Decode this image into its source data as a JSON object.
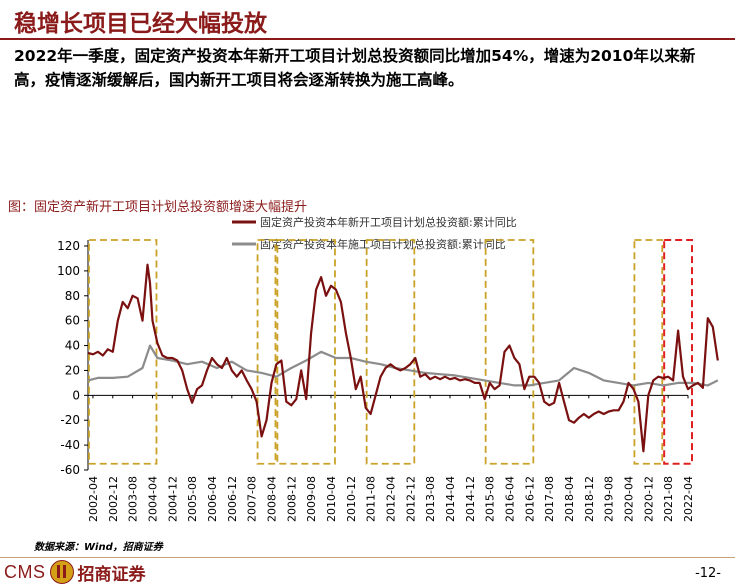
{
  "slide": {
    "title": "稳增长项目已经大幅投放",
    "summary": "2022年一季度，固定资产投资本年新开工项目计划总投资额同比增加54%，增速为2010年以来新高，疫情逐渐缓解后，国内新开工项目将会逐渐转换为施工高峰。",
    "caption": "图：固定资产新开工项目计划总投资额增速大幅提升",
    "source": "数据来源：Wind，招商证券",
    "logo_text_en": "CMS",
    "logo_text_cn": "招商证券",
    "page_number": "-12-"
  },
  "colors": {
    "brand": "#8b1a1a",
    "series_new": "#7a1010",
    "series_construction": "#8c8c8c",
    "highlight_box": "#c9a227",
    "highlight_box_latest": "#e02020"
  },
  "chart_data": {
    "type": "line",
    "title": "",
    "xlabel": "",
    "ylabel": "",
    "ylim": [
      -60,
      120
    ],
    "yticks": [
      -60,
      -40,
      -20,
      0,
      20,
      40,
      60,
      80,
      100,
      120
    ],
    "xlim": [
      "2002-02",
      "2022-04"
    ],
    "xtick_labels": [
      "2002-04",
      "2002-12",
      "2003-08",
      "2004-04",
      "2004-12",
      "2005-08",
      "2006-04",
      "2006-12",
      "2007-08",
      "2008-04",
      "2008-12",
      "2009-08",
      "2010-04",
      "2010-12",
      "2011-08",
      "2012-04",
      "2012-12",
      "2013-08",
      "2014-04",
      "2014-12",
      "2015-08",
      "2016-04",
      "2016-12",
      "2017-08",
      "2018-04",
      "2018-12",
      "2019-08",
      "2020-04",
      "2020-12",
      "2021-08",
      "2022-04"
    ],
    "legend_position": "top",
    "grid": false,
    "series": [
      {
        "name": "固定资产投资本年新开工项目计划总投资额:累计同比",
        "points": [
          [
            "2002-02",
            34
          ],
          [
            "2002-04",
            33
          ],
          [
            "2002-06",
            35
          ],
          [
            "2002-08",
            32
          ],
          [
            "2002-10",
            37
          ],
          [
            "2002-12",
            35
          ],
          [
            "2003-02",
            60
          ],
          [
            "2003-04",
            75
          ],
          [
            "2003-06",
            70
          ],
          [
            "2003-08",
            80
          ],
          [
            "2003-10",
            78
          ],
          [
            "2003-12",
            60
          ],
          [
            "2004-02",
            105
          ],
          [
            "2004-03",
            90
          ],
          [
            "2004-04",
            60
          ],
          [
            "2004-06",
            42
          ],
          [
            "2004-08",
            32
          ],
          [
            "2004-10",
            30
          ],
          [
            "2004-12",
            30
          ],
          [
            "2005-02",
            28
          ],
          [
            "2005-04",
            20
          ],
          [
            "2005-06",
            5
          ],
          [
            "2005-08",
            -6
          ],
          [
            "2005-10",
            5
          ],
          [
            "2005-12",
            8
          ],
          [
            "2006-02",
            20
          ],
          [
            "2006-04",
            30
          ],
          [
            "2006-06",
            25
          ],
          [
            "2006-08",
            22
          ],
          [
            "2006-10",
            30
          ],
          [
            "2006-12",
            20
          ],
          [
            "2007-02",
            15
          ],
          [
            "2007-04",
            20
          ],
          [
            "2007-06",
            12
          ],
          [
            "2007-08",
            5
          ],
          [
            "2007-10",
            -5
          ],
          [
            "2007-12",
            -33
          ],
          [
            "2008-02",
            -20
          ],
          [
            "2008-04",
            10
          ],
          [
            "2008-06",
            25
          ],
          [
            "2008-08",
            28
          ],
          [
            "2008-10",
            -5
          ],
          [
            "2008-12",
            -8
          ],
          [
            "2009-02",
            -3
          ],
          [
            "2009-04",
            20
          ],
          [
            "2009-06",
            -3
          ],
          [
            "2009-08",
            50
          ],
          [
            "2009-10",
            85
          ],
          [
            "2009-12",
            95
          ],
          [
            "2010-02",
            80
          ],
          [
            "2010-04",
            88
          ],
          [
            "2010-06",
            85
          ],
          [
            "2010-08",
            75
          ],
          [
            "2010-10",
            50
          ],
          [
            "2010-12",
            30
          ],
          [
            "2011-02",
            5
          ],
          [
            "2011-04",
            15
          ],
          [
            "2011-06",
            -10
          ],
          [
            "2011-08",
            -15
          ],
          [
            "2011-10",
            0
          ],
          [
            "2011-12",
            15
          ],
          [
            "2012-02",
            22
          ],
          [
            "2012-04",
            25
          ],
          [
            "2012-06",
            22
          ],
          [
            "2012-08",
            20
          ],
          [
            "2012-10",
            22
          ],
          [
            "2012-12",
            25
          ],
          [
            "2013-02",
            30
          ],
          [
            "2013-04",
            15
          ],
          [
            "2013-06",
            17
          ],
          [
            "2013-08",
            13
          ],
          [
            "2013-10",
            15
          ],
          [
            "2013-12",
            13
          ],
          [
            "2014-02",
            15
          ],
          [
            "2014-04",
            13
          ],
          [
            "2014-06",
            14
          ],
          [
            "2014-08",
            12
          ],
          [
            "2014-10",
            13
          ],
          [
            "2014-12",
            12
          ],
          [
            "2015-02",
            10
          ],
          [
            "2015-04",
            10
          ],
          [
            "2015-06",
            -3
          ],
          [
            "2015-08",
            10
          ],
          [
            "2015-10",
            5
          ],
          [
            "2015-12",
            8
          ],
          [
            "2016-02",
            35
          ],
          [
            "2016-04",
            40
          ],
          [
            "2016-06",
            30
          ],
          [
            "2016-08",
            25
          ],
          [
            "2016-10",
            5
          ],
          [
            "2016-12",
            15
          ],
          [
            "2017-02",
            15
          ],
          [
            "2017-04",
            10
          ],
          [
            "2017-06",
            -5
          ],
          [
            "2017-08",
            -8
          ],
          [
            "2017-10",
            -6
          ],
          [
            "2017-12",
            10
          ],
          [
            "2018-02",
            -5
          ],
          [
            "2018-04",
            -20
          ],
          [
            "2018-06",
            -22
          ],
          [
            "2018-08",
            -18
          ],
          [
            "2018-10",
            -15
          ],
          [
            "2018-12",
            -18
          ],
          [
            "2019-02",
            -15
          ],
          [
            "2019-04",
            -13
          ],
          [
            "2019-06",
            -15
          ],
          [
            "2019-08",
            -13
          ],
          [
            "2019-10",
            -12
          ],
          [
            "2019-12",
            -12
          ],
          [
            "2020-02",
            -5
          ],
          [
            "2020-04",
            10
          ],
          [
            "2020-06",
            5
          ],
          [
            "2020-08",
            -5
          ],
          [
            "2020-10",
            -45
          ],
          [
            "2020-12",
            0
          ],
          [
            "2021-02",
            12
          ],
          [
            "2021-04",
            15
          ],
          [
            "2021-06",
            14
          ],
          [
            "2021-08",
            15
          ],
          [
            "2021-10",
            12
          ],
          [
            "2021-12",
            52
          ],
          [
            "2022-02",
            15
          ],
          [
            "2022-04",
            5
          ],
          [
            "2022-06",
            8
          ],
          [
            "2022-08",
            10
          ],
          [
            "2022-10",
            6
          ],
          [
            "2022-12",
            62
          ],
          [
            "2023-02",
            55
          ],
          [
            "2023-04",
            28
          ]
        ]
      },
      {
        "name": "固定资产投资本年施工项目计划总投资额:累计同比",
        "points": [
          [
            "2002-02",
            12
          ],
          [
            "2002-06",
            14
          ],
          [
            "2002-12",
            14
          ],
          [
            "2003-06",
            15
          ],
          [
            "2003-12",
            22
          ],
          [
            "2004-03",
            40
          ],
          [
            "2004-06",
            30
          ],
          [
            "2004-12",
            28
          ],
          [
            "2005-06",
            25
          ],
          [
            "2005-12",
            27
          ],
          [
            "2006-06",
            22
          ],
          [
            "2006-12",
            27
          ],
          [
            "2007-06",
            20
          ],
          [
            "2007-12",
            18
          ],
          [
            "2008-06",
            15
          ],
          [
            "2008-12",
            22
          ],
          [
            "2009-06",
            28
          ],
          [
            "2009-12",
            35
          ],
          [
            "2010-06",
            30
          ],
          [
            "2010-12",
            30
          ],
          [
            "2011-06",
            27
          ],
          [
            "2011-12",
            25
          ],
          [
            "2012-06",
            22
          ],
          [
            "2012-12",
            20
          ],
          [
            "2013-06",
            18
          ],
          [
            "2013-12",
            17
          ],
          [
            "2014-06",
            16
          ],
          [
            "2014-12",
            14
          ],
          [
            "2015-06",
            12
          ],
          [
            "2015-12",
            10
          ],
          [
            "2016-06",
            8
          ],
          [
            "2016-12",
            8
          ],
          [
            "2017-06",
            10
          ],
          [
            "2017-12",
            12
          ],
          [
            "2018-06",
            22
          ],
          [
            "2018-12",
            18
          ],
          [
            "2019-06",
            12
          ],
          [
            "2019-12",
            10
          ],
          [
            "2020-06",
            8
          ],
          [
            "2020-12",
            10
          ],
          [
            "2021-06",
            8
          ],
          [
            "2021-12",
            10
          ],
          [
            "2022-06",
            10
          ],
          [
            "2022-12",
            8
          ],
          [
            "2023-04",
            12
          ]
        ]
      }
    ],
    "highlights": [
      {
        "from": "2002-04",
        "to": "2004-04",
        "kind": "normal"
      },
      {
        "from": "2007-12",
        "to": "2008-04",
        "kind": "normal"
      },
      {
        "from": "2008-08",
        "to": "2010-04",
        "kind": "normal"
      },
      {
        "from": "2011-08",
        "to": "2012-12",
        "kind": "normal"
      },
      {
        "from": "2015-08",
        "to": "2016-12",
        "kind": "normal"
      },
      {
        "from": "2020-08",
        "to": "2021-04",
        "kind": "normal"
      },
      {
        "from": "2021-08",
        "to": "2022-04",
        "kind": "latest"
      }
    ]
  }
}
